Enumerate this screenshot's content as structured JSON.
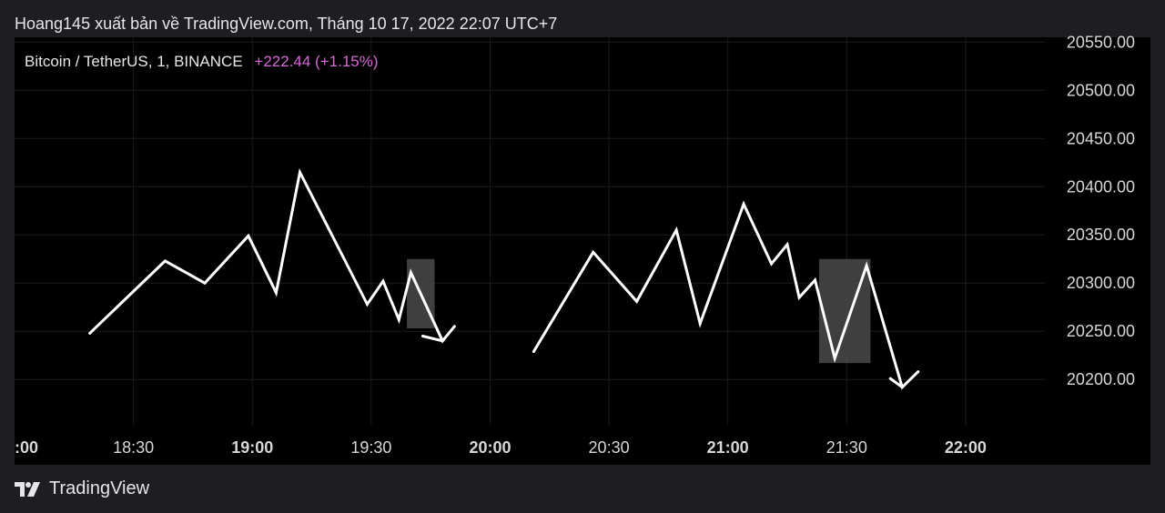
{
  "header": {
    "attribution": "Hoang145 xuất bản về TradingView.com, Tháng 10 17, 2022 22:07 UTC+7"
  },
  "legend": {
    "symbol": "Bitcoin / TetherUS, 1, BINANCE",
    "change": "+222.44 (+1.15%)"
  },
  "footer": {
    "brand": "TradingView"
  },
  "colors": {
    "background": "#000000",
    "line": "#ffffff",
    "grid": "#1c1c1e",
    "change": "#d66ad6",
    "axis_text": "#d7d7d9",
    "highlight_box": "#4a4a4a"
  },
  "chart_data": {
    "type": "line",
    "title": "",
    "xlabel": "",
    "ylabel": "",
    "x_ticks": [
      {
        "label": ":00",
        "bold": true,
        "t": "18:00"
      },
      {
        "label": "18:30",
        "bold": false,
        "t": "18:30"
      },
      {
        "label": "19:00",
        "bold": true,
        "t": "19:00"
      },
      {
        "label": "19:30",
        "bold": false,
        "t": "19:30"
      },
      {
        "label": "20:00",
        "bold": true,
        "t": "20:00"
      },
      {
        "label": "20:30",
        "bold": false,
        "t": "20:30"
      },
      {
        "label": "21:00",
        "bold": true,
        "t": "21:00"
      },
      {
        "label": "21:30",
        "bold": false,
        "t": "21:30"
      },
      {
        "label": "22:00",
        "bold": true,
        "t": "22:00"
      }
    ],
    "y_ticks": [
      "20550.00",
      "20500.00",
      "20450.00",
      "20400.00",
      "20350.00",
      "20300.00",
      "20250.00",
      "20200.00"
    ],
    "xlim": [
      "18:00",
      "22:20"
    ],
    "ylim": [
      20153,
      20555
    ],
    "series": [
      {
        "values": [
          {
            "x": "18:19",
            "y": 20248
          },
          {
            "x": "18:38",
            "y": 20323
          },
          {
            "x": "18:48",
            "y": 20300
          },
          {
            "x": "18:59",
            "y": 20349
          },
          {
            "x": "19:06",
            "y": 20290
          },
          {
            "x": "19:12",
            "y": 20415
          },
          {
            "x": "19:29",
            "y": 20278
          },
          {
            "x": "19:33",
            "y": 20302
          },
          {
            "x": "19:37",
            "y": 20262
          },
          {
            "x": "19:40",
            "y": 20311
          },
          {
            "x": "19:48",
            "y": 20240
          },
          {
            "x": "19:51",
            "y": 20255
          }
        ]
      },
      {
        "values": [
          {
            "x": "20:11",
            "y": 20229
          },
          {
            "x": "20:26",
            "y": 20332
          },
          {
            "x": "20:37",
            "y": 20281
          },
          {
            "x": "20:47",
            "y": 20355
          },
          {
            "x": "20:53",
            "y": 20258
          },
          {
            "x": "21:04",
            "y": 20382
          },
          {
            "x": "21:11",
            "y": 20320
          },
          {
            "x": "21:15",
            "y": 20340
          },
          {
            "x": "21:18",
            "y": 20285
          },
          {
            "x": "21:22",
            "y": 20303
          },
          {
            "x": "21:27",
            "y": 20222
          },
          {
            "x": "21:35",
            "y": 20318
          },
          {
            "x": "21:44",
            "y": 20192
          },
          {
            "x": "21:48",
            "y": 20208
          }
        ]
      }
    ],
    "highlight_boxes": [
      {
        "x0": "19:39",
        "x1": "19:46",
        "y0": 20253,
        "y1": 20325
      },
      {
        "x0": "21:23",
        "x1": "21:36",
        "y0": 20217,
        "y1": 20325
      }
    ],
    "arrow_tips": [
      {
        "from": {
          "x": "19:43",
          "y": 20245
        },
        "to": {
          "x": "19:48",
          "y": 20240
        }
      },
      {
        "from": {
          "x": "21:41",
          "y": 20201
        },
        "to": {
          "x": "21:44",
          "y": 20192
        }
      }
    ],
    "grid": true,
    "legend_position": "top-left"
  }
}
